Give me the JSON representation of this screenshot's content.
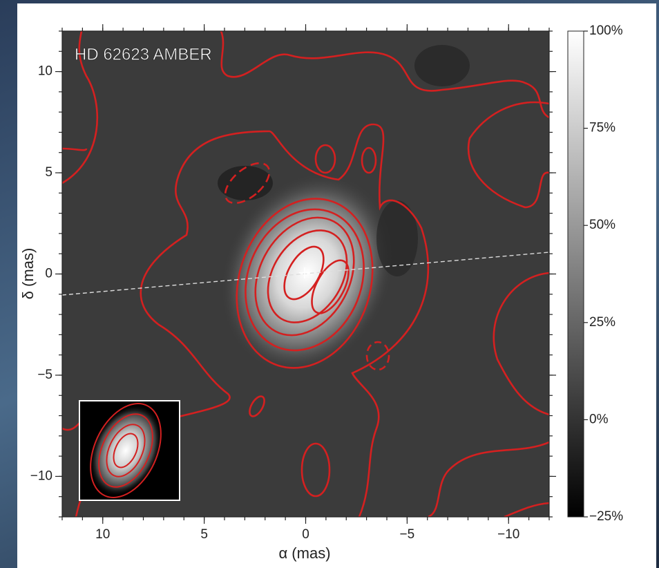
{
  "chart_data": {
    "type": "image",
    "title": "HD 62623 AMBER",
    "xlabel": "α (mas)",
    "ylabel": "δ (mas)",
    "xlim": [
      12,
      -12
    ],
    "xticks": [
      10,
      5,
      0,
      {
        "value": -5,
        "label": "−5"
      },
      {
        "value": -10,
        "label": "−10"
      }
    ],
    "ylim": [
      -12,
      12
    ],
    "yticks": [
      {
        "value": -10,
        "label": "−10"
      },
      {
        "value": -5,
        "label": "−5"
      },
      0,
      5,
      10
    ],
    "colorbar": {
      "lim": [
        -25,
        100
      ],
      "ticks": [
        {
          "value": -25,
          "label": "−25%"
        },
        {
          "value": 0,
          "label": "0%"
        },
        {
          "value": 25,
          "label": "25%"
        },
        {
          "value": 50,
          "label": "50%"
        },
        {
          "value": 75,
          "label": "75%"
        },
        {
          "value": 100,
          "label": "100%"
        }
      ]
    },
    "contour_color": "#d42020"
  }
}
